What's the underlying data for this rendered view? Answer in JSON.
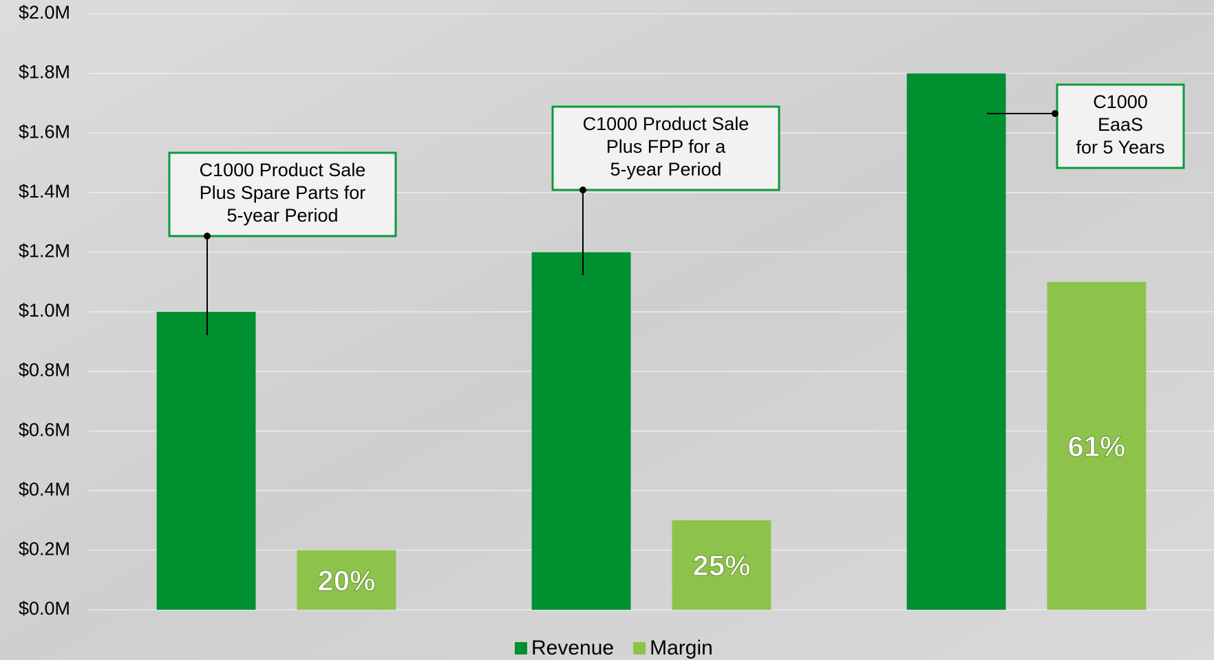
{
  "chart_data": {
    "type": "bar",
    "categories": [
      null,
      null,
      null
    ],
    "series": [
      {
        "name": "Revenue",
        "color": "#01902f",
        "values": [
          1000000,
          1200000,
          1800000
        ]
      },
      {
        "name": "Margin",
        "color": "#8dc34a",
        "values": [
          200000,
          300000,
          1100000
        ],
        "value_labels": [
          "20%",
          "25%",
          "61%"
        ]
      }
    ],
    "ylim": [
      0,
      2000000
    ],
    "yticks": [
      {
        "value": 0,
        "label": "$0.0M"
      },
      {
        "value": 200000,
        "label": "$0.2M"
      },
      {
        "value": 400000,
        "label": "$0.4M"
      },
      {
        "value": 600000,
        "label": "$0.6M"
      },
      {
        "value": 800000,
        "label": "$0.8M"
      },
      {
        "value": 1000000,
        "label": "$1.0M"
      },
      {
        "value": 1200000,
        "label": "$1.2M"
      },
      {
        "value": 1400000,
        "label": "$1.4M"
      },
      {
        "value": 1600000,
        "label": "$1.6M"
      },
      {
        "value": 1800000,
        "label": "$1.8M"
      },
      {
        "value": 2000000,
        "label": "$2.0M"
      }
    ],
    "grid": true,
    "legend": "bottom",
    "annotations": [
      {
        "lines": [
          "C1000 Product Sale",
          "Plus Spare Parts for",
          "5-year Period"
        ]
      },
      {
        "lines": [
          "C1000 Product Sale",
          "Plus FPP for a",
          "5-year Period"
        ]
      },
      {
        "lines": [
          "C1000",
          "EaaS",
          "for 5 Years"
        ]
      }
    ]
  }
}
